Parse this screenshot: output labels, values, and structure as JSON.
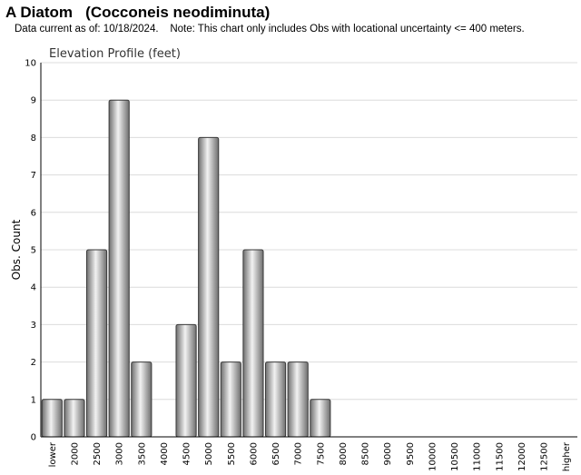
{
  "header": {
    "title": "A Diatom   (Cocconeis neodiminuta)",
    "subtitle": "Data current as of: 10/18/2024.    Note: This chart only includes Obs with locational uncertainty <= 400 meters."
  },
  "chart_data": {
    "type": "bar",
    "title": "Elevation Profile (feet)",
    "xlabel": "",
    "ylabel": "Obs. Count",
    "ylim": [
      0,
      10
    ],
    "yticks": [
      0,
      1,
      2,
      3,
      4,
      5,
      6,
      7,
      8,
      9,
      10
    ],
    "grid": true,
    "categories": [
      "lower",
      "2000",
      "2500",
      "3000",
      "3500",
      "4000",
      "4500",
      "5000",
      "5500",
      "6000",
      "6500",
      "7000",
      "7500",
      "8000",
      "8500",
      "9000",
      "9500",
      "10000",
      "10500",
      "11000",
      "11500",
      "12000",
      "12500",
      "higher"
    ],
    "values": [
      1,
      1,
      5,
      9,
      2,
      0,
      3,
      8,
      2,
      5,
      2,
      2,
      1,
      0,
      0,
      0,
      0,
      0,
      0,
      0,
      0,
      0,
      0,
      0
    ],
    "colors": {
      "bar_light": "#f2f2f2",
      "bar_dark": "#6e6e6e",
      "bar_stroke": "#3a3a3a",
      "grid": "#dcdcdc",
      "axis": "#000000"
    }
  }
}
